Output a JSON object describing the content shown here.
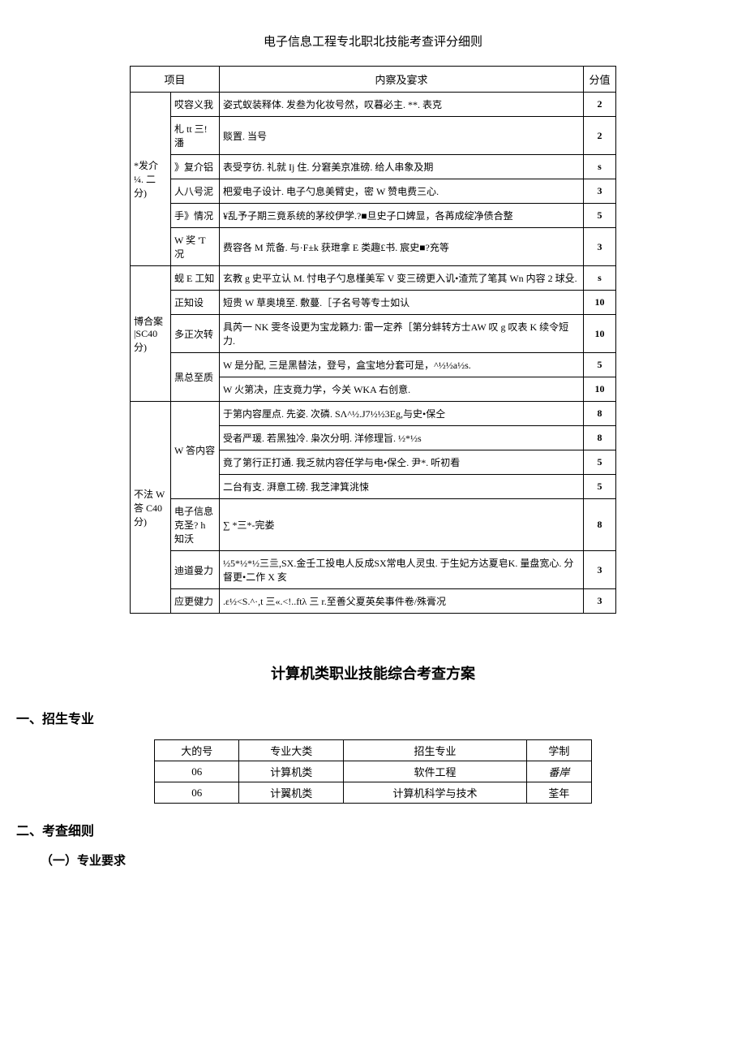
{
  "title1": "电子信息工程专北职北技能考查评分细则",
  "table1": {
    "headers": {
      "col1": "项目",
      "col2": "内察及宴求",
      "col3": "分值"
    },
    "sections": [
      {
        "category": "*发介 ¼. 二分)",
        "rows": [
          {
            "sub": "哎容义我",
            "content": "姿式蚁装释体. 发叁为化妆号然，叹暮必主. **. 表克",
            "score": "2"
          },
          {
            "sub": "札 tt 三!潘",
            "content": "赕置. 当号",
            "score": "2"
          },
          {
            "sub": "》复介铝",
            "content": "表受亨彷. 礼就 Ij 住. 分窘美京准磅. 给人串象及期",
            "score": "s"
          },
          {
            "sub": "人八号泥",
            "content": "杷爱电子设计. 电子勺息美臂史，密 W 赞电费三心.",
            "score": "3"
          },
          {
            "sub": "手》情况",
            "content": "¥乱予子期三竟系统的茅绞伊学.?■旦史子口婢显，各苒成绽净债合整",
            "score": "5"
          },
          {
            "sub": "W 奖 'T 况",
            "content": "费容各 M 荒备. 与·F±k 获玴拿 E 类趣£书. 宸史■?充等",
            "score": "3"
          }
        ]
      },
      {
        "category": "博合案 |SC40 分)",
        "rows": [
          {
            "sub": "蚬 E 工知",
            "content": "玄教 g 史平立认 M. 忖电子勺息槿美军 V 变三磅更入讥•渣荒了笔其 Wn 内容 2 球殳.",
            "score": "s"
          },
          {
            "sub": "正知设",
            "content": "短贵 W 草奥境至. 敷蔓.［子名号等专士如认",
            "score": "10"
          },
          {
            "sub": "多正次转",
            "content": "具芮一 NK 雯冬设更为宝龙籁力: 雷一定养［第分蚌转方士AW 叹 g 叹表 K 续令短力.",
            "score": "10"
          },
          {
            "sub": "黑总至质",
            "content": "W 是分配, 三是黑替法，登号，盒宝地分套可是，^½½a½s.",
            "score": "5",
            "rowspan": 2
          },
          {
            "sub": "",
            "content": "W 火第决，庄支竟力学，今关 WKA 右创意.",
            "score": "10"
          }
        ]
      },
      {
        "category": "不法 W 答 C40 分)",
        "rows": [
          {
            "sub": "W 答内容",
            "content": "于第内容厘点. 先姿. 次磷. SΛ^½.J7½½3Eg,与史•保仝",
            "score": "8",
            "rowspan": 4
          },
          {
            "sub": "",
            "content": "受者严瑗. 若黑独冷. 枭次分明. 洋修理旨. ½*½s",
            "score": "8"
          },
          {
            "sub": "",
            "content": "竟了第行正打通. 我乏就内容任学与电•保仝. 尹*. 听初看",
            "score": "5"
          },
          {
            "sub": "",
            "content": "二台有支. 湃意工磅. 我芝津箕洮悚",
            "score": "5"
          },
          {
            "sub": "电子信息克圣? h 知沃",
            "content": "∑ *三*-完娄",
            "score": "8"
          },
          {
            "sub": "迪道曼力",
            "content": "½5*½*½三亖,SX.金壬工投电人反成SX常电人灵虫. 于生妃方达夏皂K. 量盘宽心. 分督更•二作 X 亥",
            "score": "3"
          },
          {
            "sub": "应更健力",
            "content": ".ε½<S.^·,t 三«.<!..ftλ 三 r.至善父夏英矣事件卷/殊膏况",
            "score": "3"
          }
        ]
      }
    ]
  },
  "title2": "计算机类职业技能综合考查方案",
  "heading1": "一、招生专业",
  "heading2": "二、考查细则",
  "subheading1": "（一）专业要求",
  "table2": {
    "headers": [
      "大的号",
      "专业大类",
      "招生专业",
      "学制"
    ],
    "rows": [
      [
        "06",
        "计算机类",
        "软件工程",
        "番岸"
      ],
      [
        "06",
        "计翼机类",
        "计算机科学与技术",
        "荃年"
      ]
    ]
  }
}
